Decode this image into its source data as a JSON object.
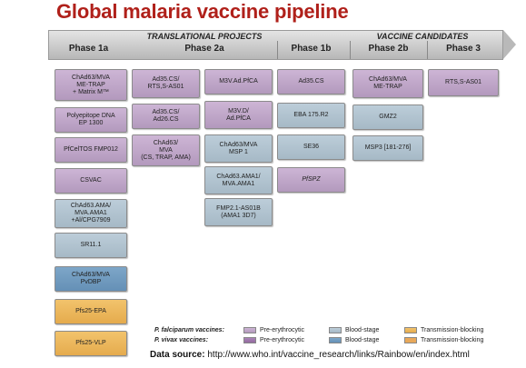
{
  "title": "Global malaria vaccine pipeline",
  "groups": {
    "translational": "TRANSLATIONAL PROJECTS",
    "candidates": "VACCINE CANDIDATES"
  },
  "phases": [
    "Phase 1a",
    "Phase 2a",
    "Phase 1b",
    "Phase 2b",
    "Phase 3"
  ],
  "columns": {
    "phase1a": [
      {
        "text": "ChAd63/MVA\nME-TRAP\n+ Matrix M™",
        "type": "pf-pre"
      },
      {
        "text": "Polyepitope DNA\nEP 1300",
        "type": "pf-pre"
      },
      {
        "text": "PfCelTOS FMP012",
        "type": "pf-pre"
      },
      {
        "text": "CSVAC",
        "type": "pf-pre"
      },
      {
        "text": "ChAd63.AMA/\nMVA.AMA1\n+Al/CPG7909",
        "type": "pf-blood"
      },
      {
        "text": "SR11.1",
        "type": "pf-blood"
      },
      {
        "text": "ChAd63/MVA\nPvDBP",
        "type": "pv-blood"
      },
      {
        "text": "Pfs25-EPA",
        "type": "pf-trans"
      },
      {
        "text": "Pfs25-VLP",
        "type": "pf-trans"
      }
    ],
    "phase2a_left": [
      {
        "text": "Ad35.CS/\nRTS,S-AS01",
        "type": "pf-pre"
      },
      {
        "text": "Ad35.CS/\nAd26.CS",
        "type": "pf-pre"
      },
      {
        "text": "ChAd63/\nMVA\n(CS, TRAP, AMA)",
        "type": "pf-pre"
      }
    ],
    "phase2a_right": [
      {
        "text": "M3V.Ad.PfCA",
        "type": "pf-pre"
      },
      {
        "text": "M3V.D/\nAd.PfCA",
        "type": "pf-pre"
      },
      {
        "text": "ChAd63/MVA\nMSP 1",
        "type": "pf-blood"
      },
      {
        "text": "ChAd63.AMA1/\nMVA.AMA1",
        "type": "pf-blood"
      },
      {
        "text": "FMP2.1-AS01B\n(AMA1 3D7)",
        "type": "pf-blood"
      }
    ],
    "phase1b": [
      {
        "text": "Ad35.CS",
        "type": "pf-pre"
      },
      {
        "text": "EBA 175.R2",
        "type": "pf-blood"
      },
      {
        "text": "SE36",
        "type": "pf-blood"
      },
      {
        "text": "PfSPZ",
        "type": "pf-pre"
      }
    ],
    "phase2b": [
      {
        "text": "ChAd63/MVA\nME-TRAP",
        "type": "pf-pre"
      },
      {
        "text": "GMZ2",
        "type": "pf-blood"
      },
      {
        "text": "MSP3 [181-276]",
        "type": "pf-blood"
      }
    ],
    "phase3": [
      {
        "text": "RTS,S-AS01",
        "type": "pf-pre"
      }
    ]
  },
  "legend": {
    "pf_label": "P. falciparum vaccines:",
    "pv_label": "P. vivax vaccines:",
    "pre": "Pre-erythrocytic",
    "blood": "Blood-stage",
    "trans": "Transmission-blocking"
  },
  "source": {
    "label": "Data source:",
    "url": "http://www.who.int/vaccine_research/links/Rainbow/en/index.html"
  },
  "colors": {
    "title": "#b0201a",
    "pf-pre": "#c3a9cc",
    "pv-pre": "#a07aad",
    "pf-blood": "#b2c4d1",
    "pv-blood": "#7099be",
    "pf-trans": "#eebb60",
    "pv-trans": "#e8a85a"
  }
}
